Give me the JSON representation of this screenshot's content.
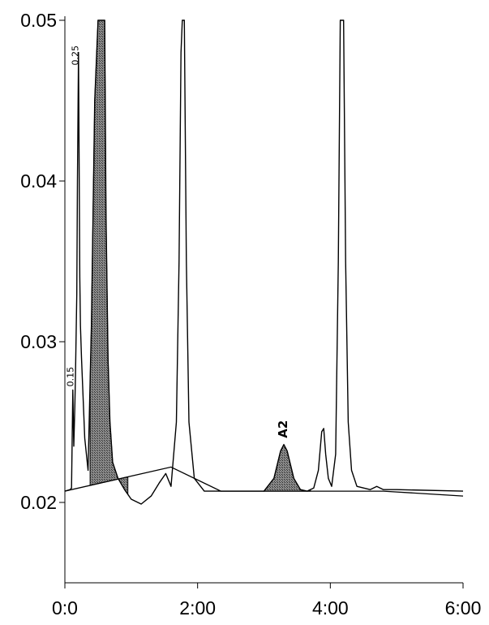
{
  "chart_data": {
    "type": "line",
    "title": "",
    "xlabel": "",
    "ylabel": "",
    "xlim": [
      0,
      6
    ],
    "ylim": [
      0.015,
      0.05
    ],
    "x_ticks": [
      {
        "value": 0,
        "label": "0:0"
      },
      {
        "value": 2,
        "label": "2:00"
      },
      {
        "value": 4,
        "label": "4:00"
      },
      {
        "value": 6,
        "label": "6:00"
      }
    ],
    "y_ticks": [
      {
        "value": 0.02,
        "label": "0.02"
      },
      {
        "value": 0.03,
        "label": "0.03"
      },
      {
        "value": 0.04,
        "label": "0.04"
      },
      {
        "value": 0.05,
        "label": "0.05"
      }
    ],
    "grid": false,
    "series": [
      {
        "x": [
          0,
          0.08,
          0.1,
          0.12,
          0.135,
          0.15,
          0.16,
          0.18,
          0.19,
          0.205,
          0.215,
          0.225,
          0.235,
          0.25,
          0.27,
          0.3,
          0.35,
          0.4,
          0.45,
          0.5,
          0.52,
          0.55,
          0.6,
          0.62,
          0.65,
          0.68,
          0.72,
          0.8,
          0.9,
          1.0,
          1.15,
          1.3,
          1.42,
          1.52,
          1.6,
          1.68,
          1.72,
          1.75,
          1.77,
          1.8,
          1.83,
          1.87,
          1.95,
          2.1,
          2.3,
          2.5,
          3.0,
          3.15,
          3.25,
          3.3,
          3.35,
          3.45,
          3.55,
          3.65,
          3.75,
          3.82,
          3.87,
          3.9,
          3.93,
          3.97,
          4.02,
          4.08,
          4.12,
          4.15,
          4.18,
          4.2,
          4.23,
          4.27,
          4.32,
          4.4,
          4.5,
          4.6,
          4.7,
          4.8,
          5.0,
          6.0
        ],
        "y": [
          0.0207,
          0.0208,
          0.0209,
          0.027,
          0.0235,
          0.026,
          0.028,
          0.033,
          0.04,
          0.048,
          0.041,
          0.034,
          0.031,
          0.029,
          0.027,
          0.024,
          0.022,
          0.031,
          0.045,
          0.05,
          0.05,
          0.05,
          0.05,
          0.038,
          0.029,
          0.025,
          0.0225,
          0.0215,
          0.0208,
          0.0202,
          0.0199,
          0.0204,
          0.0212,
          0.0218,
          0.021,
          0.025,
          0.035,
          0.048,
          0.05,
          0.05,
          0.035,
          0.025,
          0.0215,
          0.0207,
          0.0207,
          0.0207,
          0.0207,
          0.0215,
          0.0232,
          0.0236,
          0.0232,
          0.0215,
          0.0208,
          0.0207,
          0.0209,
          0.022,
          0.0244,
          0.0246,
          0.023,
          0.0215,
          0.021,
          0.023,
          0.035,
          0.05,
          0.05,
          0.05,
          0.035,
          0.025,
          0.022,
          0.021,
          0.0209,
          0.0208,
          0.021,
          0.0208,
          0.0208,
          0.0207
        ]
      }
    ],
    "baseline": {
      "x": [
        0,
        1.6,
        2.35,
        4.8,
        6.0
      ],
      "y": [
        0.0207,
        0.0222,
        0.0207,
        0.0207,
        0.0204
      ]
    },
    "shaded_regions": [
      {
        "x": [
          0.38,
          0.95
        ]
      },
      {
        "x": [
          3.0,
          3.7
        ]
      }
    ],
    "annotations": [
      {
        "text": "0.25",
        "x": 0.2,
        "y": 0.0472
      },
      {
        "text": "0.15",
        "x": 0.13,
        "y": 0.0272
      },
      {
        "text": "A2",
        "x": 3.35,
        "y": 0.024
      }
    ]
  }
}
